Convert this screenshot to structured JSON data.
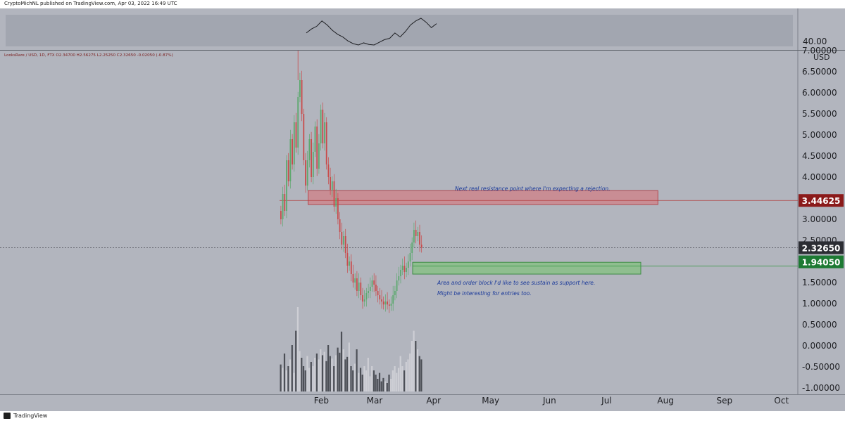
{
  "header": {
    "publisher_text": "CryptoMichNL published on TradingView.com, Apr 03, 2022 16:49 UTC"
  },
  "footer": {
    "brand": "TradingView",
    "logo_icon": "tradingview-logo-icon"
  },
  "colors": {
    "background": "#b2b5be",
    "indicator_band": "#a2a6b0",
    "candle_up": "#5ca96e",
    "candle_down": "#c94b4b",
    "volume_up": "#d2d4d9",
    "volume_down": "#3a3d44",
    "resistance_zone": "#c98d94",
    "support_zone": "#8fbe8f",
    "resistance_line": "#b23a3a",
    "support_line": "#3c9a4a",
    "annotation_text": "#1b3a9a",
    "label_resistance": "#8b1a1a",
    "label_support": "#1d7a33",
    "label_last": "#2b2d33"
  },
  "chart_data": {
    "type": "candlestick",
    "symbol_line": "LooksRare / USD, 1D, FTX  O2.34700  H2.56275  L2.25250  C2.32650  -0.02050 (-0.87%)",
    "y_axis_unit": "USD",
    "indicator_value": "40.00",
    "ylim": [
      -1.0,
      7.0
    ],
    "y_ticks": [
      "7.00000",
      "6.50000",
      "6.00000",
      "5.50000",
      "5.00000",
      "4.50000",
      "4.00000",
      "3.50000",
      "3.00000",
      "2.50000",
      "2.00000",
      "1.50000",
      "1.00000",
      "0.50000",
      "0.00000",
      "-0.50000",
      "-1.00000"
    ],
    "x_ticks": [
      "Feb",
      "Mar",
      "Apr",
      "May",
      "Jun",
      "Jul",
      "Aug",
      "Sep",
      "Oct"
    ],
    "price_labels": [
      {
        "name": "resistance",
        "value": "3.44625"
      },
      {
        "name": "last",
        "value": "2.32650"
      },
      {
        "name": "support",
        "value": "1.94050"
      }
    ],
    "zones": [
      {
        "name": "resistance-zone",
        "low": 3.35,
        "high": 3.68,
        "from": "2022-01-25",
        "to": "2022-07-28"
      },
      {
        "name": "support-zone",
        "low": 1.7,
        "high": 1.98,
        "from": "2022-03-21",
        "to": "2022-07-19"
      }
    ],
    "annotations": [
      "Next real resistance point where I'm expecting a rejection.",
      "Area and order block I'd like to see sustain as support here.",
      "Might be interesting for entries too."
    ],
    "closes": [
      3.0,
      3.6,
      3.2,
      4.4,
      3.9,
      4.9,
      4.3,
      5.3,
      4.7,
      5.9,
      6.3,
      5.5,
      4.4,
      3.8,
      4.4,
      4.9,
      4.0,
      4.6,
      5.2,
      4.2,
      4.8,
      5.6,
      4.8,
      5.3,
      4.3,
      4.0,
      3.7,
      3.9,
      3.3,
      3.5,
      3.0,
      2.7,
      2.4,
      2.6,
      2.2,
      1.9,
      2.0,
      1.7,
      1.5,
      1.6,
      1.3,
      1.5,
      1.2,
      1.05,
      1.1,
      1.25,
      1.3,
      1.4,
      1.55,
      1.45,
      1.3,
      1.2,
      1.1,
      1.05,
      0.98,
      1.05,
      0.98,
      0.95,
      1.0,
      1.2,
      1.3,
      1.55,
      1.65,
      1.8,
      1.9,
      1.75,
      1.85,
      2.0,
      2.2,
      2.45,
      2.75,
      2.6,
      2.7,
      2.4,
      2.33
    ],
    "volume_levels": [
      0.32,
      0.28,
      0.45,
      0.25,
      0.3,
      0.38,
      0.55,
      0.22,
      0.72,
      1.0,
      0.48,
      0.4,
      0.3,
      0.25,
      0.42,
      0.28,
      0.35,
      0.3,
      0.4,
      0.45,
      0.38,
      0.5,
      0.43,
      0.47,
      0.36,
      0.55,
      0.42,
      0.39,
      0.3,
      0.43,
      0.52,
      0.46,
      0.71,
      0.5,
      0.38,
      0.41,
      0.58,
      0.3,
      0.25,
      0.33,
      0.5,
      0.22,
      0.28,
      0.2,
      0.3,
      0.25,
      0.4,
      0.18,
      0.3,
      0.25,
      0.2,
      0.15,
      0.22,
      0.12,
      0.16,
      0.12,
      0.1,
      0.2,
      0.15,
      0.25,
      0.3,
      0.22,
      0.28,
      0.42,
      0.3,
      0.25,
      0.35,
      0.38,
      0.45,
      0.6,
      0.72,
      0.6,
      0.5,
      0.42,
      0.38
    ]
  }
}
